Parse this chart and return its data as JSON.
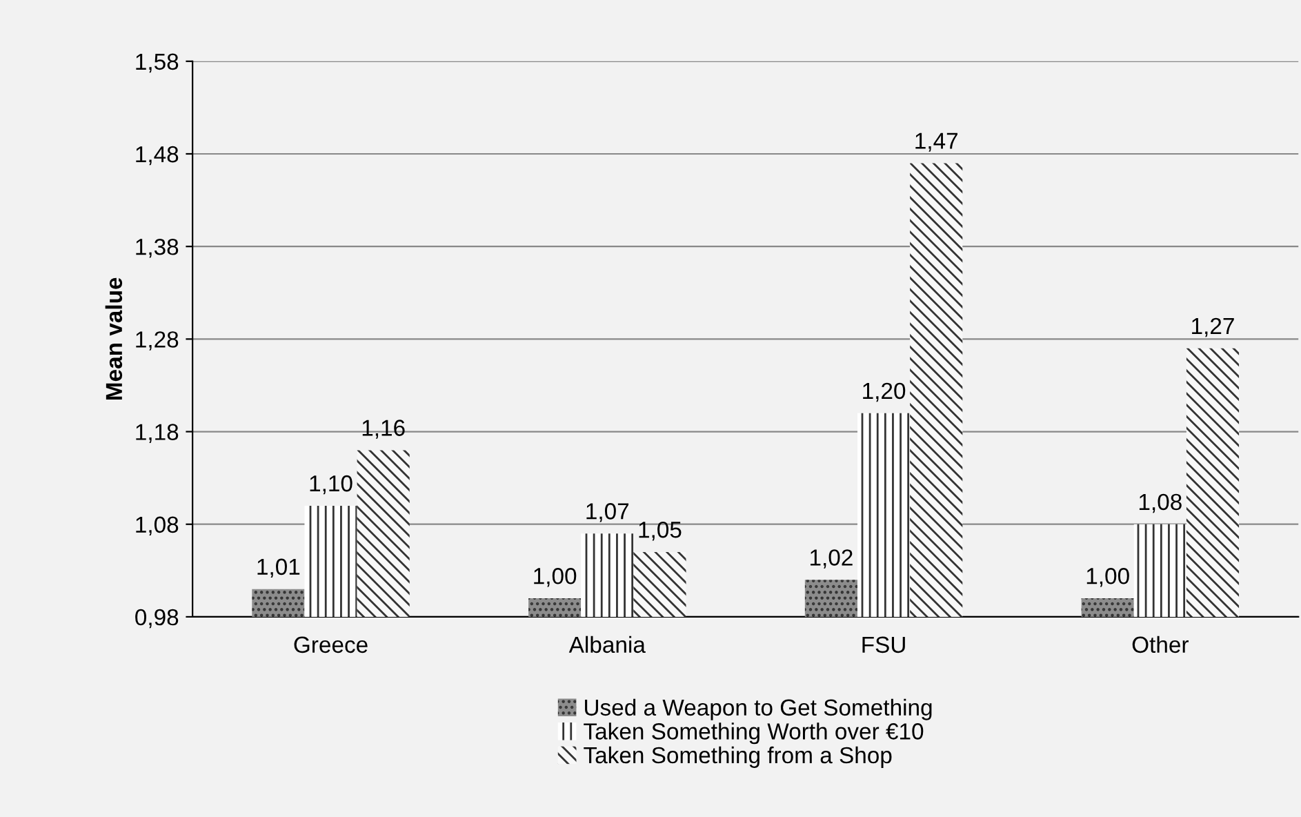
{
  "chart_data": {
    "type": "bar",
    "ylabel": "Mean value",
    "categories": [
      "Greece",
      "Albania",
      "FSU",
      "Other"
    ],
    "series": [
      {
        "name": "Used a Weapon to Get Something",
        "color": "#8c8c8c",
        "values": [
          1.01,
          1.0,
          1.02,
          1.0
        ],
        "value_labels": [
          "1,01",
          "1,00",
          "1,02",
          "1,00"
        ]
      },
      {
        "name": "Taken Something Worth over €10",
        "color": "#ffffff",
        "values": [
          1.1,
          1.07,
          1.2,
          1.08
        ],
        "value_labels": [
          "1,10",
          "1,07",
          "1,20",
          "1,08"
        ]
      },
      {
        "name": "Taken Something from a Shop",
        "color": "#f8f8f8",
        "values": [
          1.16,
          1.05,
          1.47,
          1.27
        ],
        "value_labels": [
          "1,16",
          "1,05",
          "1,47",
          "1,27"
        ]
      }
    ],
    "ylim": [
      0.98,
      1.58
    ],
    "yticks": [
      {
        "value": 0.98,
        "label": "0,98"
      },
      {
        "value": 1.08,
        "label": "1,08"
      },
      {
        "value": 1.18,
        "label": "1,18"
      },
      {
        "value": 1.28,
        "label": "1,28"
      },
      {
        "value": 1.38,
        "label": "1,38"
      },
      {
        "value": 1.48,
        "label": "1,48"
      },
      {
        "value": 1.58,
        "label": "1,58"
      }
    ],
    "grid": "y",
    "legend": "bottom"
  }
}
